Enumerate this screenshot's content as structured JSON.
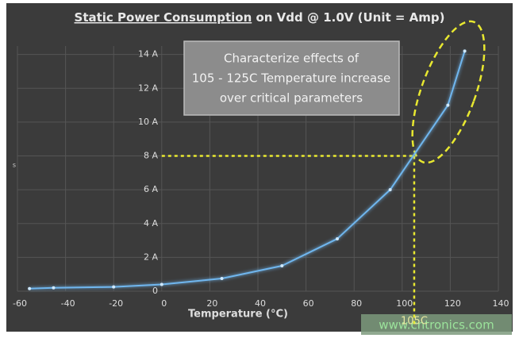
{
  "chart_data": {
    "type": "line",
    "title_parts": [
      "Static Power Consumption",
      " on Vdd @ 1.0V (Unit = Amp)"
    ],
    "x_label": "Temperature (°C)",
    "y_label": "s",
    "x": [
      -55,
      -45,
      -20,
      0,
      25,
      50,
      73,
      95,
      119,
      126
    ],
    "series": [
      {
        "color": "#6fb6ee",
        "values": [
          0.15,
          0.2,
          0.25,
          0.4,
          0.75,
          1.5,
          3.1,
          6.0,
          11.0,
          14.2
        ]
      }
    ],
    "xlim": [
      -60,
      140
    ],
    "xticks": [
      -60,
      -40,
      -20,
      0,
      20,
      40,
      60,
      80,
      100,
      120,
      140
    ],
    "ylim": [
      0,
      14.5
    ],
    "yticks": [
      0,
      {
        "value": 2,
        "label": "2 A"
      },
      {
        "value": 4,
        "label": "4 A"
      },
      {
        "value": 6,
        "label": "6 A"
      },
      {
        "value": 8,
        "label": "8 A"
      },
      {
        "value": 10,
        "label": "10 A"
      },
      {
        "value": 12,
        "label": "12 A"
      },
      {
        "value": 14,
        "label": "14 A"
      }
    ],
    "grid": true,
    "annotation_box": [
      "Characterize effects of",
      "105 - 125C Temperature increase",
      "over critical parameters"
    ],
    "hline": 8,
    "vline": 105,
    "vline_label": "105C",
    "watermark": "www.cntronics.com"
  }
}
